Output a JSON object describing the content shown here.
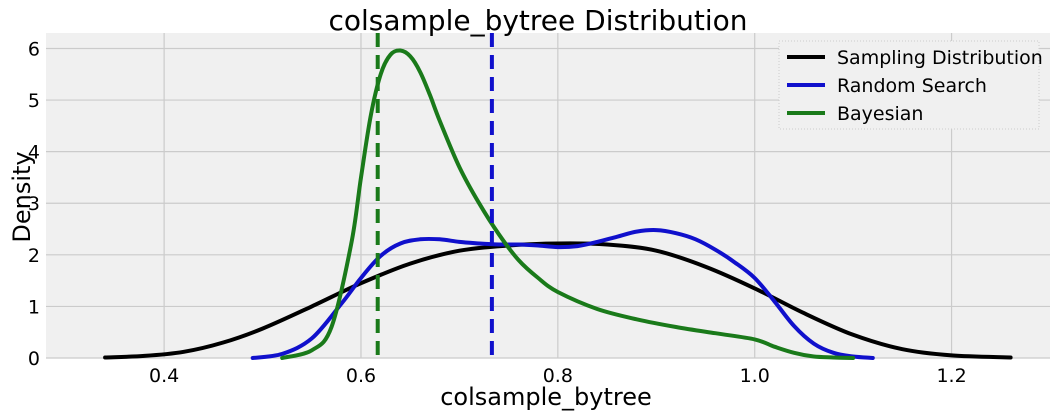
{
  "chart_data": {
    "type": "line",
    "title": "colsample_bytree Distribution",
    "xlabel": "colsample_bytree",
    "ylabel": "Density",
    "xlim": [
      0.28,
      1.3
    ],
    "ylim": [
      0,
      6.3
    ],
    "x_ticks": [
      0.4,
      0.6,
      0.8,
      1.0,
      1.2
    ],
    "x_tick_labels": [
      "0.4",
      "0.6",
      "0.8",
      "1.0",
      "1.2"
    ],
    "y_ticks": [
      0,
      1,
      2,
      3,
      4,
      5,
      6
    ],
    "y_tick_labels": [
      "0",
      "1",
      "2",
      "3",
      "4",
      "5",
      "6"
    ],
    "grid": true,
    "legend_position": "top-right",
    "series": [
      {
        "name": "Sampling Distribution",
        "color": "#000000",
        "style": "solid",
        "x": [
          0.34,
          0.38,
          0.42,
          0.46,
          0.5,
          0.55,
          0.6,
          0.65,
          0.7,
          0.75,
          0.8,
          0.85,
          0.9,
          0.95,
          1.0,
          1.05,
          1.1,
          1.15,
          1.2,
          1.26
        ],
        "y": [
          0.01,
          0.04,
          0.12,
          0.3,
          0.57,
          1.0,
          1.45,
          1.83,
          2.08,
          2.18,
          2.22,
          2.2,
          2.08,
          1.77,
          1.35,
          0.87,
          0.45,
          0.17,
          0.05,
          0.01
        ]
      },
      {
        "name": "Random Search",
        "color": "#1010cc",
        "style": "solid",
        "x": [
          0.49,
          0.52,
          0.55,
          0.58,
          0.6,
          0.62,
          0.64,
          0.66,
          0.68,
          0.7,
          0.72,
          0.74,
          0.76,
          0.78,
          0.8,
          0.82,
          0.84,
          0.86,
          0.88,
          0.9,
          0.92,
          0.94,
          0.96,
          0.98,
          1.0,
          1.02,
          1.04,
          1.06,
          1.08,
          1.1,
          1.12
        ],
        "y": [
          0.0,
          0.08,
          0.38,
          1.05,
          1.55,
          1.98,
          2.22,
          2.3,
          2.3,
          2.25,
          2.22,
          2.2,
          2.2,
          2.18,
          2.15,
          2.17,
          2.25,
          2.35,
          2.45,
          2.48,
          2.42,
          2.3,
          2.1,
          1.85,
          1.55,
          1.1,
          0.62,
          0.28,
          0.1,
          0.03,
          0.0
        ]
      },
      {
        "name": "Bayesian",
        "color": "#1a7a1a",
        "style": "solid",
        "x": [
          0.52,
          0.55,
          0.57,
          0.59,
          0.6,
          0.61,
          0.62,
          0.63,
          0.64,
          0.65,
          0.66,
          0.67,
          0.68,
          0.7,
          0.72,
          0.74,
          0.76,
          0.78,
          0.8,
          0.84,
          0.88,
          0.92,
          0.96,
          1.0,
          1.02,
          1.04,
          1.06,
          1.08,
          1.1
        ],
        "y": [
          0.0,
          0.15,
          0.6,
          2.2,
          3.5,
          4.7,
          5.5,
          5.88,
          5.96,
          5.85,
          5.55,
          5.1,
          4.6,
          3.7,
          3.0,
          2.4,
          1.9,
          1.55,
          1.28,
          0.95,
          0.75,
          0.6,
          0.48,
          0.36,
          0.22,
          0.1,
          0.03,
          0.01,
          0.0
        ]
      }
    ],
    "vlines": [
      {
        "x": 0.617,
        "color": "#1a7a1a",
        "style": "dashed"
      },
      {
        "x": 0.733,
        "color": "#1010cc",
        "style": "dashed"
      }
    ]
  }
}
